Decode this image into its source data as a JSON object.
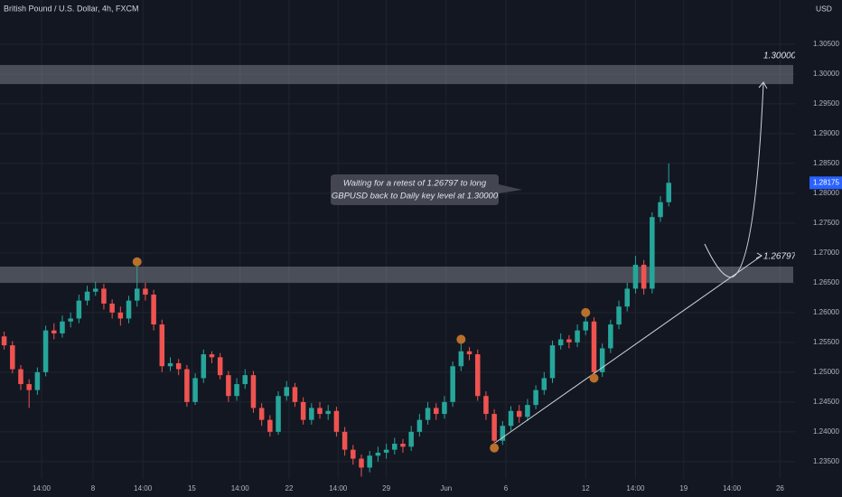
{
  "chart_data": {
    "type": "candlestick",
    "title": "British Pound / U.S. Dollar, 4h, FXCM",
    "currency": "USD",
    "up_color": "#26a69a",
    "down_color": "#ef5350",
    "grid": true,
    "ylim": [
      1.2321,
      1.3124
    ],
    "yticks": [
      {
        "value": 1.235,
        "label": "1.23500"
      },
      {
        "value": 1.24,
        "label": "1.24000"
      },
      {
        "value": 1.245,
        "label": "1.24500"
      },
      {
        "value": 1.25,
        "label": "1.25000"
      },
      {
        "value": 1.255,
        "label": "1.25500"
      },
      {
        "value": 1.26,
        "label": "1.26000"
      },
      {
        "value": 1.265,
        "label": "1.26500"
      },
      {
        "value": 1.27,
        "label": "1.27000"
      },
      {
        "value": 1.275,
        "label": "1.27500"
      },
      {
        "value": 1.28,
        "label": "1.28000"
      },
      {
        "value": 1.285,
        "label": "1.28500"
      },
      {
        "value": 1.29,
        "label": "1.29000"
      },
      {
        "value": 1.295,
        "label": "1.29500"
      },
      {
        "value": 1.3,
        "label": "1.30000"
      },
      {
        "value": 1.305,
        "label": "1.30500"
      }
    ],
    "xlim": [
      -0.5,
      95.2
    ],
    "xticks": [
      {
        "value": 4.5,
        "label": "14:00"
      },
      {
        "value": 10.7,
        "label": "8"
      },
      {
        "value": 16.7,
        "label": "14:00"
      },
      {
        "value": 22.6,
        "label": "15"
      },
      {
        "value": 28.4,
        "label": "14:00"
      },
      {
        "value": 34.3,
        "label": "22"
      },
      {
        "value": 40.2,
        "label": "14:00"
      },
      {
        "value": 46.0,
        "label": "29"
      },
      {
        "value": 53.2,
        "label": "Jun"
      },
      {
        "value": 60.4,
        "label": "6"
      },
      {
        "value": 70.0,
        "label": "12"
      },
      {
        "value": 76.0,
        "label": "14:00"
      },
      {
        "value": 81.8,
        "label": "19"
      },
      {
        "value": 87.6,
        "label": "14:00"
      },
      {
        "value": 93.4,
        "label": "26"
      }
    ],
    "open": [
      1.256,
      1.2545,
      1.2505,
      1.248,
      1.247,
      1.25,
      1.257,
      1.2565,
      1.2585,
      1.259,
      1.262,
      1.2635,
      1.264,
      1.2615,
      1.26,
      1.259,
      1.262,
      1.264,
      1.263,
      1.258,
      1.251,
      1.2515,
      1.2505,
      1.245,
      1.249,
      1.253,
      1.2525,
      1.2495,
      1.246,
      1.248,
      1.2495,
      1.244,
      1.242,
      1.24,
      1.246,
      1.2475,
      1.245,
      1.242,
      1.244,
      1.243,
      1.2435,
      1.24,
      1.237,
      1.2355,
      1.234,
      1.236,
      1.2365,
      1.237,
      1.238,
      1.2375,
      1.24,
      1.242,
      1.244,
      1.243,
      1.245,
      1.251,
      1.2535,
      1.253,
      1.246,
      1.243,
      1.2385,
      1.241,
      1.2435,
      1.2425,
      1.2445,
      1.247,
      1.249,
      1.2545,
      1.2555,
      1.255,
      1.257,
      1.2585,
      1.25,
      1.254,
      1.258,
      1.261,
      1.264,
      1.268,
      1.264,
      1.276,
      1.2785
    ],
    "high": [
      1.2568,
      1.2552,
      1.2512,
      1.2488,
      1.2508,
      1.2578,
      1.2582,
      1.2595,
      1.26,
      1.263,
      1.2645,
      1.2652,
      1.2648,
      1.2622,
      1.261,
      1.2628,
      1.2685,
      1.265,
      1.2638,
      1.2588,
      1.2525,
      1.2522,
      1.2512,
      1.2498,
      1.2538,
      1.2535,
      1.2532,
      1.2502,
      1.249,
      1.2505,
      1.2502,
      1.2448,
      1.2428,
      1.2468,
      1.2485,
      1.2482,
      1.2458,
      1.2448,
      1.245,
      1.2445,
      1.2442,
      1.2408,
      1.2378,
      1.2362,
      1.2368,
      1.2375,
      1.238,
      1.239,
      1.2388,
      1.241,
      1.243,
      1.245,
      1.2448,
      1.246,
      1.2518,
      1.2555,
      1.2542,
      1.2538,
      1.2468,
      1.2438,
      1.2418,
      1.2443,
      1.2445,
      1.2455,
      1.2478,
      1.25,
      1.2553,
      1.2565,
      1.2562,
      1.258,
      1.26,
      1.2592,
      1.2548,
      1.2588,
      1.262,
      1.265,
      1.2695,
      1.2688,
      1.2768,
      1.2795,
      1.285
    ],
    "low": [
      1.2538,
      1.2498,
      1.247,
      1.244,
      1.2462,
      1.2493,
      1.2555,
      1.2558,
      1.2575,
      1.2582,
      1.2612,
      1.2628,
      1.2605,
      1.259,
      1.2578,
      1.2582,
      1.261,
      1.262,
      1.257,
      1.25,
      1.2502,
      1.2495,
      1.2442,
      1.2445,
      1.2482,
      1.2515,
      1.2488,
      1.245,
      1.2452,
      1.2472,
      1.2432,
      1.241,
      1.2392,
      1.2395,
      1.2452,
      1.2442,
      1.2412,
      1.2412,
      1.2422,
      1.242,
      1.2392,
      1.236,
      1.2345,
      1.2325,
      1.2332,
      1.235,
      1.2355,
      1.2362,
      1.2365,
      1.2368,
      1.2392,
      1.2412,
      1.242,
      1.2422,
      1.2442,
      1.2502,
      1.252,
      1.2452,
      1.242,
      1.2373,
      1.2378,
      1.2402,
      1.2415,
      1.2418,
      1.2438,
      1.2462,
      1.2482,
      1.2538,
      1.254,
      1.2542,
      1.2562,
      1.249,
      1.2492,
      1.2532,
      1.2572,
      1.2602,
      1.2632,
      1.263,
      1.2632,
      1.2752,
      1.2778
    ],
    "close": [
      1.2545,
      1.2505,
      1.248,
      1.247,
      1.25,
      1.257,
      1.2565,
      1.2585,
      1.259,
      1.262,
      1.2635,
      1.264,
      1.2615,
      1.26,
      1.259,
      1.262,
      1.264,
      1.263,
      1.258,
      1.251,
      1.2515,
      1.2505,
      1.245,
      1.249,
      1.253,
      1.2525,
      1.2495,
      1.246,
      1.248,
      1.2495,
      1.244,
      1.242,
      1.24,
      1.246,
      1.2475,
      1.245,
      1.242,
      1.244,
      1.243,
      1.2435,
      1.24,
      1.237,
      1.2355,
      1.234,
      1.236,
      1.2365,
      1.237,
      1.238,
      1.2375,
      1.24,
      1.242,
      1.244,
      1.243,
      1.245,
      1.251,
      1.2535,
      1.253,
      1.246,
      1.243,
      1.2385,
      1.241,
      1.2435,
      1.2425,
      1.2445,
      1.247,
      1.249,
      1.2545,
      1.2555,
      1.255,
      1.257,
      1.2585,
      1.25,
      1.254,
      1.258,
      1.261,
      1.264,
      1.268,
      1.264,
      1.276,
      1.2785,
      1.28175
    ],
    "last_price_label": "1.28175",
    "zones": [
      {
        "top": 1.3015,
        "bottom": 1.2983
      },
      {
        "top": 1.2677,
        "bottom": 1.265
      }
    ],
    "annotations": {
      "target": "1.30000",
      "retest": "1.26797",
      "note_line1": "Waiting for a retest of 1.26797 to long",
      "note_line2": "GBPUSD back to Daily key level at 1.30000"
    }
  }
}
